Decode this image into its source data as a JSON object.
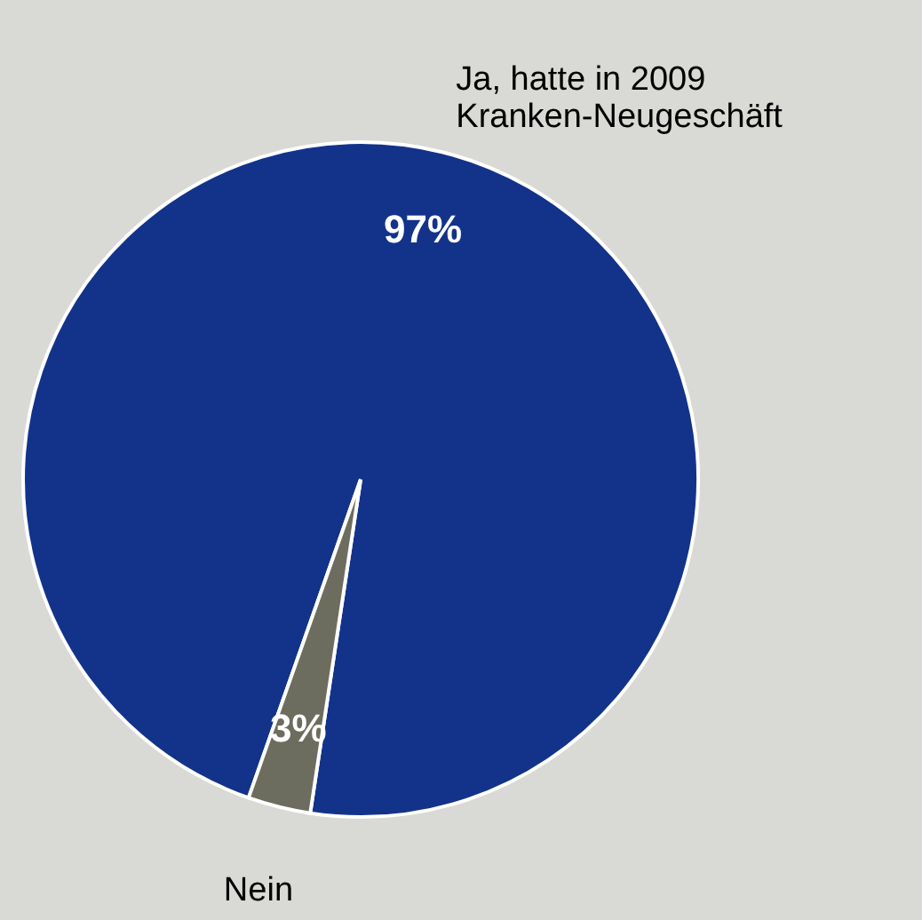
{
  "chart_data": {
    "type": "pie",
    "categories": [
      "Ja, hatte in 2009\nKranken-Neugeschäft",
      "Nein"
    ],
    "values": [
      97,
      3
    ],
    "colors": [
      "#13338a",
      "#6d6d5f"
    ],
    "value_labels": [
      "97%",
      "3%"
    ]
  }
}
